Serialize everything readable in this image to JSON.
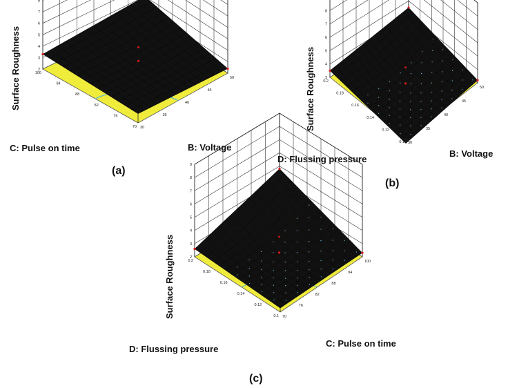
{
  "colors": {
    "surface": "#111111",
    "floor": "#f0ec3c",
    "contour": "#58b6d6",
    "design_point": "#e01818",
    "surface_dots": "#6fc6e6"
  },
  "chart_data": [
    {
      "type": "surface",
      "caption": "(a)",
      "zlabel": "Surface Roughness",
      "xlabel": "C: Pulse on time",
      "ylabel": "B: Voltage",
      "z_ticks": [
        "2",
        "3",
        "4",
        "5",
        "6",
        "7",
        "8",
        "9"
      ],
      "x_ticks": [
        "70",
        "76",
        "82",
        "88",
        "94",
        "100"
      ],
      "y_ticks": [
        "30",
        "35",
        "40",
        "45",
        "50"
      ],
      "zlim": [
        2,
        9
      ],
      "corners": {
        "left": 3.3,
        "front": 2.8,
        "right": 2.4,
        "back": 4.0
      },
      "surface_dots": false
    },
    {
      "type": "surface",
      "caption": "(b)",
      "zlabel": "Surface Roughness",
      "xlabel": "D: Flussing pressure",
      "ylabel": "B: Voltage",
      "z_ticks": [
        "3",
        "4",
        "5",
        "6",
        "7",
        "8",
        "9"
      ],
      "x_ticks": [
        "0.1",
        "0.12",
        "0.14",
        "0.16",
        "0.18",
        "0.2"
      ],
      "y_ticks": [
        "30",
        "35",
        "40",
        "45",
        "50"
      ],
      "zlim": [
        3,
        9
      ],
      "corners": {
        "left": 3.5,
        "front": 2.6,
        "right": 3.2,
        "back": 4.5
      },
      "surface_dots": true
    },
    {
      "type": "surface",
      "caption": "(c)",
      "zlabel": "Surface Roughness",
      "xlabel": "D: Flussing pressure",
      "ylabel": "C: Pulse on time",
      "z_ticks": [
        "2",
        "3",
        "4",
        "5",
        "6",
        "7",
        "8",
        "9"
      ],
      "x_ticks": [
        "0.1",
        "0.12",
        "0.14",
        "0.16",
        "0.18",
        "0.2"
      ],
      "y_ticks": [
        "70",
        "76",
        "82",
        "88",
        "94",
        "100"
      ],
      "zlim": [
        2,
        9
      ],
      "corners": {
        "left": 2.6,
        "front": 2.3,
        "right": 2.3,
        "back": 4.8
      },
      "surface_dots": true
    }
  ]
}
